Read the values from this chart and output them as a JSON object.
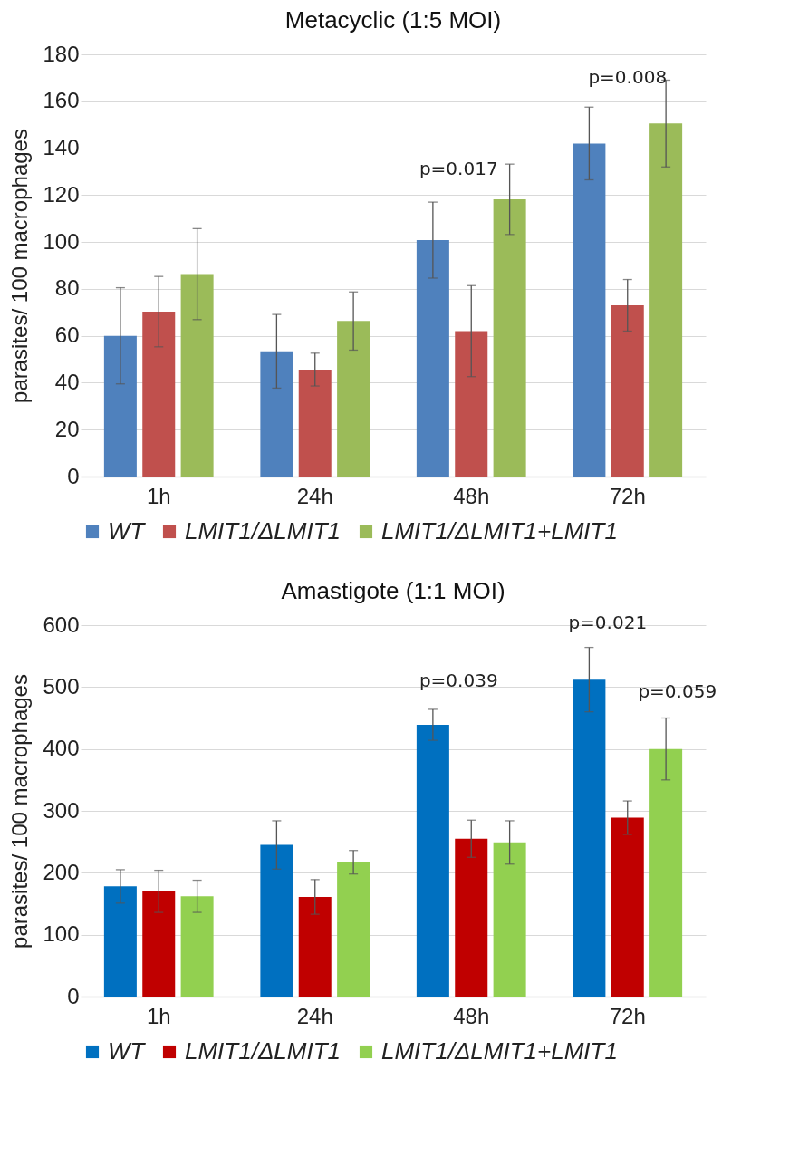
{
  "chart_data": [
    {
      "type": "bar",
      "title": "Metacyclic (1:5 MOI)",
      "ylabel": "parasites/ 100 macrophages",
      "categories": [
        "1h",
        "24h",
        "48h",
        "72h"
      ],
      "series": [
        {
          "name": "WT",
          "color": "#4f81bd",
          "values": [
            60,
            53.4,
            100.8,
            142
          ],
          "errors": [
            20.5,
            15.7,
            16.2,
            15.5
          ]
        },
        {
          "name": "LMIT1/ΔLMIT1",
          "color": "#c0504d",
          "values": [
            70.3,
            45.6,
            62,
            73
          ],
          "errors": [
            15,
            7,
            19.4,
            11
          ]
        },
        {
          "name": "LMIT1/ΔLMIT1+LMIT1",
          "color": "#9bbb59",
          "values": [
            86.3,
            66.3,
            118.2,
            150.5
          ],
          "errors": [
            19.4,
            12.4,
            15,
            18.5
          ]
        }
      ],
      "ylim": [
        0,
        180
      ],
      "yticks": [
        0,
        20,
        40,
        60,
        80,
        100,
        120,
        140,
        160,
        180
      ],
      "grid": "y",
      "legend": "bottom",
      "annotations": [
        "p=0.017",
        "p=0.008"
      ]
    },
    {
      "type": "bar",
      "title": "Amastigote (1:1 MOI)",
      "ylabel": "parasites/ 100 macrophages",
      "categories": [
        "1h",
        "24h",
        "48h",
        "72h"
      ],
      "series": [
        {
          "name": "WT",
          "color": "#0070c0",
          "values": [
            178,
            245,
            439,
            512
          ],
          "errors": [
            27,
            39,
            25,
            52
          ]
        },
        {
          "name": "LMIT1/ΔLMIT1",
          "color": "#c00000",
          "values": [
            170,
            161,
            255,
            289
          ],
          "errors": [
            34,
            28,
            30,
            27
          ]
        },
        {
          "name": "LMIT1/ΔLMIT1+LMIT1",
          "color": "#92d050",
          "values": [
            162,
            217,
            249,
            400
          ],
          "errors": [
            26,
            19,
            35,
            50
          ]
        }
      ],
      "ylim": [
        0,
        600
      ],
      "yticks": [
        0,
        100,
        200,
        300,
        400,
        500,
        600
      ],
      "grid": "y",
      "legend": "bottom",
      "annotations": [
        "p=0.039",
        "p=0.021",
        "p=0.059"
      ]
    }
  ]
}
